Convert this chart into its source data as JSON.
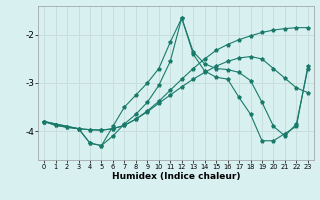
{
  "xlabel": "Humidex (Indice chaleur)",
  "bg_color": "#d8f0f0",
  "grid_color": "#c8dede",
  "line_color": "#1a7a6a",
  "xlim": [
    -0.5,
    23.5
  ],
  "ylim": [
    -4.6,
    -1.4
  ],
  "yticks": [
    -4,
    -3,
    -2
  ],
  "xticks": [
    0,
    1,
    2,
    3,
    4,
    5,
    6,
    7,
    8,
    9,
    10,
    11,
    12,
    13,
    14,
    15,
    16,
    17,
    18,
    19,
    20,
    21,
    22,
    23
  ],
  "series": [
    {
      "x": [
        0,
        1,
        2,
        3,
        4,
        5,
        6,
        7,
        8,
        9,
        10,
        11,
        12,
        13,
        14,
        15,
        16,
        17,
        18,
        19,
        20,
        21,
        22,
        23
      ],
      "y": [
        -3.8,
        -3.88,
        -3.92,
        -3.95,
        -3.97,
        -3.98,
        -3.95,
        -3.88,
        -3.75,
        -3.58,
        -3.38,
        -3.15,
        -2.92,
        -2.7,
        -2.5,
        -2.32,
        -2.2,
        -2.1,
        -2.02,
        -1.95,
        -1.9,
        -1.87,
        -1.85,
        -1.85
      ]
    },
    {
      "x": [
        0,
        1,
        2,
        3,
        4,
        5,
        6,
        7,
        8,
        9,
        10,
        11,
        12,
        13,
        14,
        15,
        16,
        17,
        18,
        19,
        20,
        21,
        22,
        23
      ],
      "y": [
        -3.8,
        -3.88,
        -3.92,
        -3.95,
        -3.97,
        -3.98,
        -3.95,
        -3.88,
        -3.75,
        -3.6,
        -3.42,
        -3.25,
        -3.08,
        -2.92,
        -2.78,
        -2.65,
        -2.55,
        -2.48,
        -2.45,
        -2.5,
        -2.7,
        -2.9,
        -3.1,
        -3.2
      ]
    },
    {
      "x": [
        0,
        3,
        4,
        5,
        6,
        7,
        8,
        9,
        10,
        11,
        12,
        13,
        14,
        15,
        16,
        17,
        18,
        19,
        20,
        21,
        22,
        23
      ],
      "y": [
        -3.8,
        -3.95,
        -4.25,
        -4.3,
        -3.9,
        -3.5,
        -3.25,
        -3.0,
        -2.7,
        -2.15,
        -1.65,
        -2.35,
        -2.6,
        -2.7,
        -2.72,
        -2.78,
        -2.95,
        -3.4,
        -3.9,
        -4.1,
        -3.85,
        -2.7
      ]
    },
    {
      "x": [
        0,
        3,
        4,
        5,
        6,
        7,
        8,
        9,
        10,
        11,
        12,
        13,
        14,
        15,
        16,
        17,
        18,
        19,
        20,
        21,
        22,
        23
      ],
      "y": [
        -3.8,
        -3.95,
        -4.25,
        -4.3,
        -4.1,
        -3.85,
        -3.65,
        -3.4,
        -3.05,
        -2.55,
        -1.65,
        -2.4,
        -2.75,
        -2.88,
        -2.92,
        -3.3,
        -3.65,
        -4.2,
        -4.2,
        -4.05,
        -3.9,
        -2.65
      ]
    }
  ]
}
